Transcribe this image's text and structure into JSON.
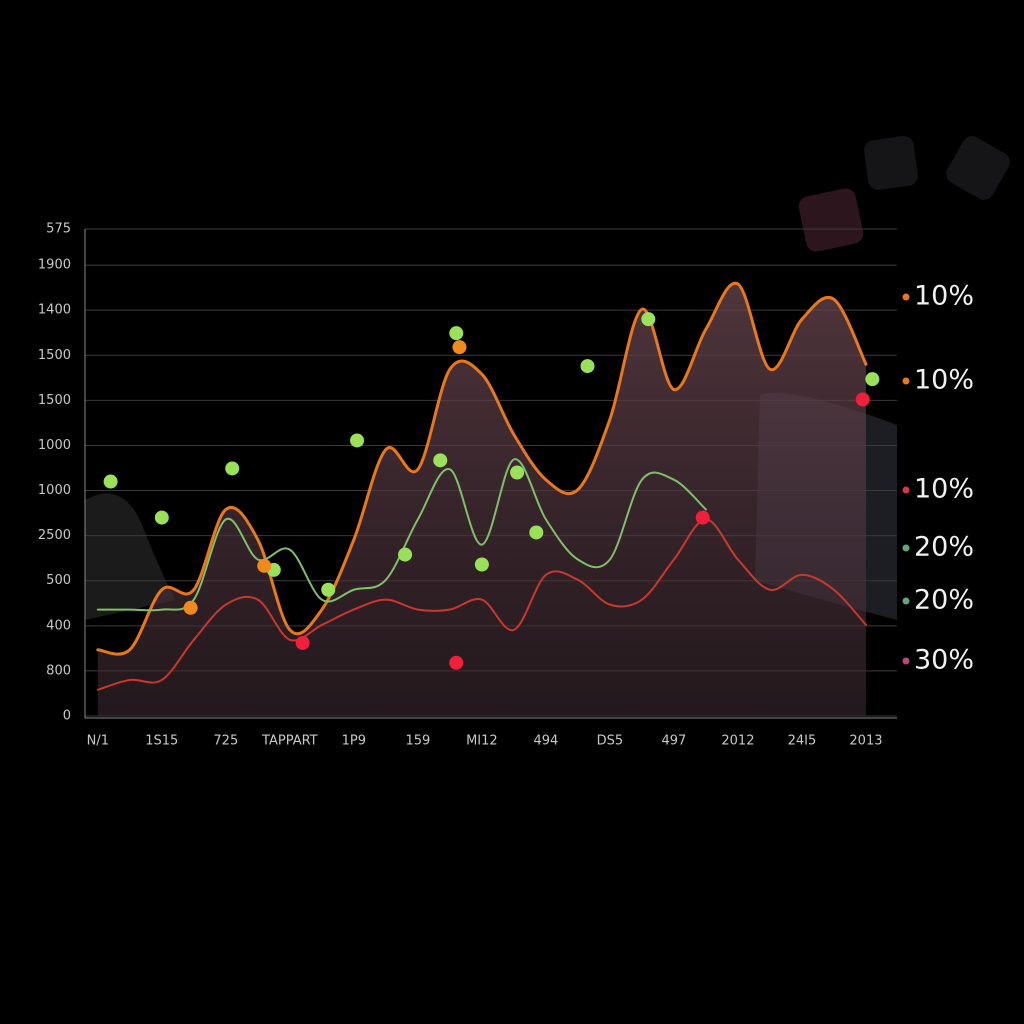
{
  "chart_data": {
    "type": "line",
    "categories": [
      "N/1",
      null,
      "1S15",
      null,
      "725",
      null,
      "TAPPART",
      null,
      "1P9",
      null,
      "159",
      null,
      "MI12",
      null,
      "494",
      null,
      "DS5",
      null,
      "497",
      null,
      "2012",
      null,
      "24I5",
      null,
      "2013"
    ],
    "xlim": [
      -0.4,
      24.97
    ],
    "ylim": [
      0,
      1080
    ],
    "yticks": [
      0,
      {
        "value": 100,
        "label": "800"
      },
      {
        "value": 200,
        "label": "400"
      },
      {
        "value": 300,
        "label": "500"
      },
      {
        "value": 400,
        "label": "2500"
      },
      {
        "value": 500,
        "label": "1000"
      },
      {
        "value": 600,
        "label": "1000"
      },
      {
        "value": 700,
        "label": "1500"
      },
      {
        "value": 800,
        "label": "1500"
      },
      {
        "value": 900,
        "label": "1400"
      },
      {
        "value": 1000,
        "label": "1900"
      },
      {
        "value": 1080,
        "label": "575"
      }
    ],
    "grid": true,
    "series": [
      {
        "color": "#e8781e",
        "fill_area": true,
        "values": [
          147,
          147,
          280,
          280,
          458,
          391,
          191,
          236,
          391,
          591,
          547,
          769,
          758,
          624,
          524,
          502,
          658,
          902,
          724,
          858,
          958,
          769,
          880,
          924,
          780
        ]
      },
      {
        "color": "#7fbf6a",
        "values": [
          236,
          236,
          236,
          258,
          436,
          347,
          369,
          258,
          280,
          302,
          436,
          547,
          380,
          569,
          436,
          347,
          347,
          524,
          524,
          458,
          null,
          null,
          null,
          null,
          null
        ]
      },
      {
        "color": "#c8382c",
        "values": [
          58,
          80,
          80,
          169,
          247,
          258,
          169,
          202,
          236,
          258,
          236,
          236,
          258,
          191,
          313,
          302,
          247,
          258,
          347,
          436,
          347,
          280,
          313,
          280,
          202
        ]
      }
    ],
    "points": [
      {
        "color": "#9be05a",
        "x": [
          0.4,
          2.0,
          4.2,
          5.5,
          7.2,
          8.1,
          9.6,
          10.7,
          11.2,
          12.0,
          13.1,
          13.7,
          15.3,
          17.2,
          24.2
        ],
        "y": [
          520,
          440,
          549,
          324,
          280,
          611,
          358,
          567,
          849,
          336,
          540,
          407,
          776,
          880,
          747
        ]
      },
      {
        "color": "#f0203a",
        "x": [
          6.4,
          11.2,
          18.9,
          23.9
        ],
        "y": [
          162,
          118,
          440,
          702
        ]
      },
      {
        "color": "#f08a1e",
        "x": [
          5.2,
          2.9,
          11.3
        ],
        "y": [
          333,
          240,
          818
        ]
      }
    ],
    "end_labels": [
      {
        "text": "10%",
        "color": "#e8781e"
      },
      {
        "text": "10%",
        "color": "#e8781e"
      },
      {
        "text": "10%",
        "color": "#d8344a"
      },
      {
        "text": "20%",
        "color": "#5fa878"
      },
      {
        "text": "20%",
        "color": "#5fa878"
      },
      {
        "text": "30%",
        "color": "#b84a7a"
      }
    ]
  }
}
